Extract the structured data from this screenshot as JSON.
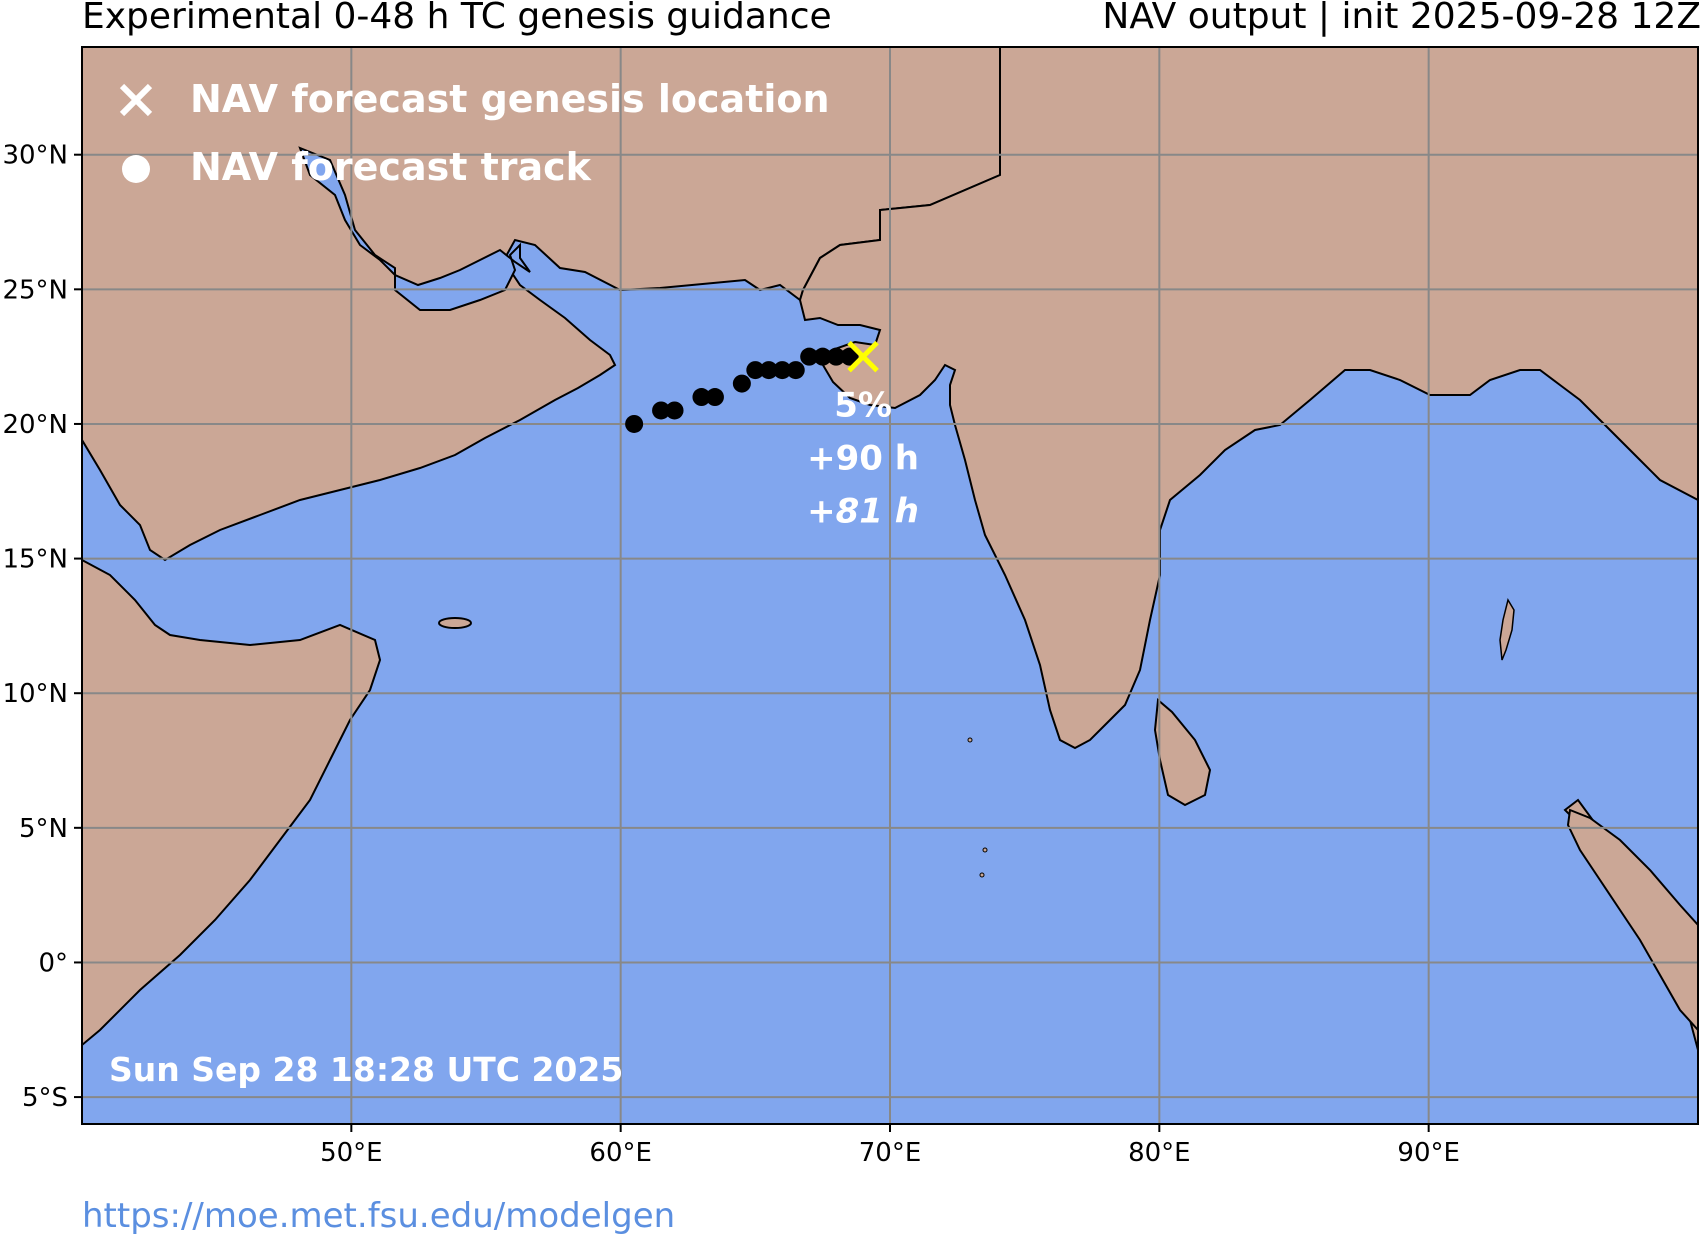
{
  "header": {
    "title_left": "Experimental 0-48 h TC genesis guidance",
    "title_right": "NAV output | init 2025-09-28 12Z"
  },
  "legend": {
    "genesis_label": "NAV forecast genesis location",
    "track_label": "NAV forecast track",
    "genesis_icon": "x-marker-icon",
    "track_icon": "dot-marker-icon"
  },
  "map": {
    "lon_range": [
      40,
      100
    ],
    "lat_range": [
      -6,
      34
    ],
    "lon_ticks": [
      {
        "value": 50,
        "label": "50°E"
      },
      {
        "value": 60,
        "label": "60°E"
      },
      {
        "value": 70,
        "label": "70°E"
      },
      {
        "value": 80,
        "label": "80°E"
      },
      {
        "value": 90,
        "label": "90°E"
      }
    ],
    "lat_ticks": [
      {
        "value": 30,
        "label": "30°N"
      },
      {
        "value": 25,
        "label": "25°N"
      },
      {
        "value": 20,
        "label": "20°N"
      },
      {
        "value": 15,
        "label": "15°N"
      },
      {
        "value": 10,
        "label": "10°N"
      },
      {
        "value": 5,
        "label": "5°N"
      },
      {
        "value": 0,
        "label": "0°"
      },
      {
        "value": -5,
        "label": "5°S"
      }
    ],
    "colors": {
      "ocean": "#81a6ee",
      "land": "#cba796",
      "grid": "#888888",
      "track": "#000000",
      "genesis_marker": "#ffff00",
      "legend_marker": "#ffffff"
    }
  },
  "genesis": {
    "lon": 69.0,
    "lat": 22.5,
    "probability": "5%",
    "lead_time": "+90 h",
    "lead_time_alt": "+81 h"
  },
  "track": [
    {
      "lon": 60.5,
      "lat": 20.0
    },
    {
      "lon": 61.5,
      "lat": 20.5
    },
    {
      "lon": 62.0,
      "lat": 20.5
    },
    {
      "lon": 63.0,
      "lat": 21.0
    },
    {
      "lon": 63.5,
      "lat": 21.0
    },
    {
      "lon": 64.5,
      "lat": 21.5
    },
    {
      "lon": 65.0,
      "lat": 22.0
    },
    {
      "lon": 65.5,
      "lat": 22.0
    },
    {
      "lon": 66.0,
      "lat": 22.0
    },
    {
      "lon": 66.5,
      "lat": 22.0
    },
    {
      "lon": 67.0,
      "lat": 22.5
    },
    {
      "lon": 67.5,
      "lat": 22.5
    },
    {
      "lon": 68.0,
      "lat": 22.5
    },
    {
      "lon": 68.5,
      "lat": 22.5
    }
  ],
  "timestamp": "Sun Sep 28 18:28 UTC 2025",
  "footer": {
    "link_text": "https://moe.met.fsu.edu/modelgen"
  }
}
